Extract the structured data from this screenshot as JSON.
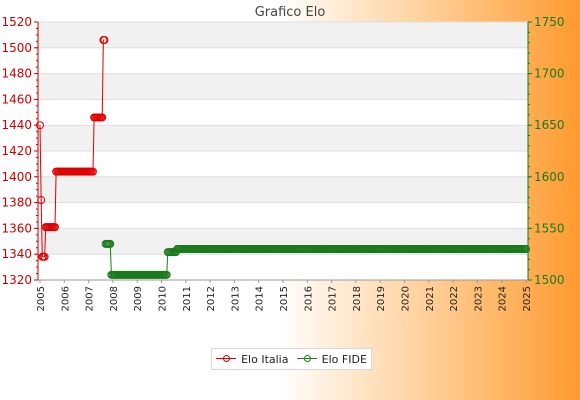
{
  "chart_data": {
    "type": "line",
    "title": "Grafico Elo",
    "x_tick_labels": [
      "2005",
      "2006",
      "2007",
      "2008",
      "2009",
      "2010",
      "2011",
      "2012",
      "2013",
      "2014",
      "2015",
      "2016",
      "2017",
      "2018",
      "2019",
      "2020",
      "2021",
      "2022",
      "2023",
      "2024",
      "2025"
    ],
    "y_left": {
      "ylim": [
        1320,
        1520
      ],
      "ticks": [
        1320,
        1340,
        1360,
        1380,
        1400,
        1420,
        1440,
        1460,
        1480,
        1500,
        1520
      ],
      "color": "#cc0000"
    },
    "y_right": {
      "ylim": [
        1500,
        1750
      ],
      "ticks": [
        1500,
        1550,
        1600,
        1650,
        1700,
        1750
      ],
      "color": "#1a7a1a"
    },
    "grid": true,
    "legend_position": "bottom",
    "series": [
      {
        "name": "Elo Italia",
        "axis": "left",
        "color": "#dd0000",
        "values": [
          1440,
          1382,
          1338,
          1338,
          1338,
          1361,
          1361,
          1361,
          1361,
          1361,
          1361,
          1361,
          1361,
          1361,
          1404,
          1404,
          1404,
          1404,
          1404,
          1404,
          1404,
          1404,
          1404,
          1404,
          1404,
          1404,
          1404,
          1404,
          1404,
          1404,
          1404,
          1404,
          1404,
          1404,
          1404,
          1404,
          1404,
          1404,
          1404,
          1404,
          1404,
          1404,
          1404,
          1404,
          1404,
          1404,
          1404,
          1446,
          1446,
          1446,
          1446,
          1446,
          1446,
          1446,
          1446,
          1506,
          1506
        ]
      },
      {
        "name": "Elo FIDE",
        "axis": "right",
        "start_index": 57,
        "color": "#1a7a1a",
        "values": [
          1535,
          1535,
          1535,
          1535,
          1535,
          1505,
          1505,
          1505,
          1505,
          1505,
          1505,
          1505,
          1505,
          1505,
          1505,
          1505,
          1505,
          1505,
          1505,
          1505,
          1505,
          1505,
          1505,
          1505,
          1505,
          1505,
          1505,
          1505,
          1505,
          1505,
          1505,
          1505,
          1505,
          1505,
          1505,
          1505,
          1505,
          1505,
          1505,
          1505,
          1505,
          1505,
          1505,
          1505,
          1505,
          1505,
          1505,
          1505,
          1505,
          1505,
          1505,
          1505,
          1505,
          1505,
          1527,
          1527,
          1527,
          1527,
          1527,
          1527,
          1527,
          1527,
          1530,
          1530,
          1530,
          1530,
          1530,
          1530,
          1530,
          1530,
          1530,
          1530,
          1530,
          1530,
          1530,
          1530,
          1530,
          1530,
          1530,
          1530,
          1530,
          1530,
          1530,
          1530,
          1530,
          1530,
          1530,
          1530,
          1530,
          1530,
          1530,
          1530,
          1530,
          1530,
          1530,
          1530,
          1530,
          1530,
          1530,
          1530,
          1530,
          1530,
          1530,
          1530,
          1530,
          1530,
          1530,
          1530,
          1530,
          1530,
          1530,
          1530,
          1530,
          1530,
          1530,
          1530,
          1530,
          1530,
          1530,
          1530,
          1530,
          1530,
          1530,
          1530,
          1530,
          1530,
          1530,
          1530,
          1530,
          1530,
          1530,
          1530,
          1530,
          1530,
          1530,
          1530,
          1530,
          1530,
          1530,
          1530,
          1530,
          1530,
          1530,
          1530,
          1530,
          1530,
          1530,
          1530,
          1530,
          1530,
          1530,
          1530,
          1530,
          1530,
          1530,
          1530,
          1530,
          1530,
          1530,
          1530,
          1530,
          1530,
          1530,
          1530,
          1530,
          1530,
          1530,
          1530,
          1530,
          1530,
          1530,
          1530,
          1530,
          1530,
          1530,
          1530,
          1530,
          1530,
          1530,
          1530,
          1530,
          1530,
          1530,
          1530,
          1530,
          1530,
          1530,
          1530,
          1530,
          1530,
          1530,
          1530,
          1530,
          1530,
          1530,
          1530,
          1530,
          1530,
          1530,
          1530,
          1530,
          1530,
          1530,
          1530,
          1530,
          1530,
          1530,
          1530,
          1530,
          1530,
          1530,
          1530,
          1530,
          1530,
          1530,
          1530,
          1530,
          1530,
          1530,
          1530,
          1530,
          1530,
          1530,
          1530,
          1530,
          1530,
          1530,
          1530,
          1530,
          1530,
          1530,
          1530,
          1530,
          1530,
          1530,
          1530,
          1530,
          1530,
          1530,
          1530,
          1530,
          1530,
          1530,
          1530,
          1530,
          1530,
          1530,
          1530,
          1530,
          1530,
          1530,
          1530,
          1530,
          1530,
          1530,
          1530,
          1530,
          1530,
          1530,
          1530,
          1530,
          1530,
          1530,
          1530,
          1530,
          1530,
          1530,
          1530,
          1530,
          1530,
          1530,
          1530,
          1530,
          1530,
          1530,
          1530,
          1530,
          1530,
          1530,
          1530,
          1530,
          1530,
          1530,
          1530,
          1530,
          1530,
          1530,
          1530,
          1530,
          1530,
          1530,
          1530,
          1530,
          1530,
          1530,
          1530,
          1530,
          1530,
          1530,
          1530,
          1530,
          1530,
          1530,
          1530,
          1530,
          1530,
          1530,
          1530,
          1530,
          1530,
          1530,
          1530,
          1530,
          1530,
          1530,
          1530,
          1530,
          1530,
          1530,
          1530,
          1530,
          1530,
          1530,
          1530,
          1530,
          1530,
          1530,
          1530,
          1530,
          1530,
          1530,
          1530,
          1530,
          1530,
          1530,
          1530,
          1530,
          1530,
          1530,
          1530,
          1530,
          1530,
          1530,
          1530,
          1530,
          1530,
          1530,
          1530,
          1530,
          1530,
          1530,
          1530,
          1530,
          1530,
          1530,
          1530,
          1530,
          1530,
          1530,
          1530,
          1530,
          1530,
          1530,
          1530,
          1530,
          1530
        ]
      }
    ]
  }
}
